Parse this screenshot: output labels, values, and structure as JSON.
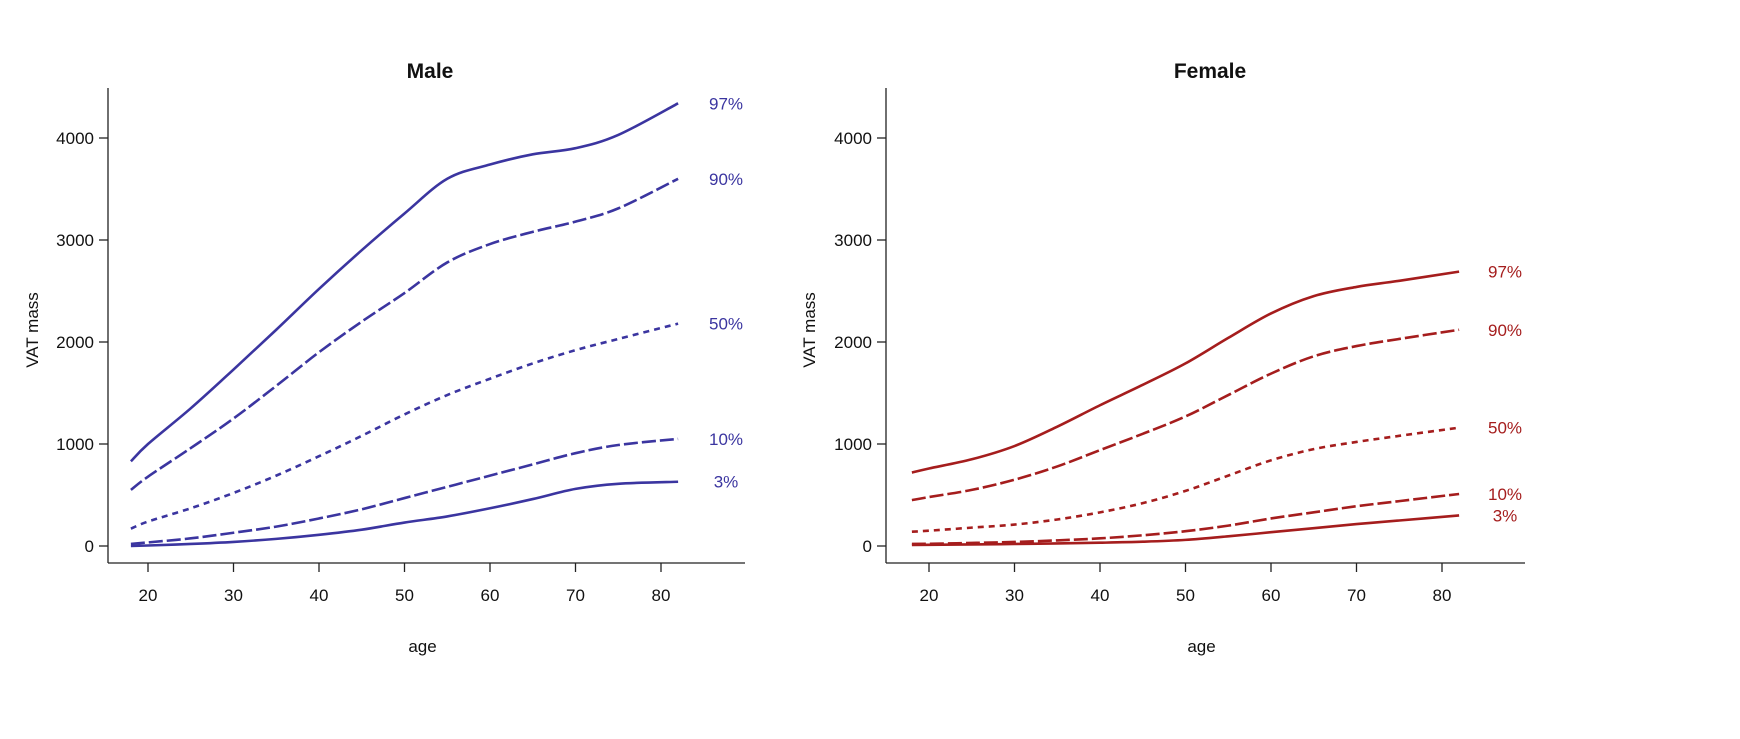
{
  "chart_data": [
    {
      "type": "line",
      "title": "Male",
      "xlabel": "age",
      "ylabel": "VAT mass",
      "xlim": [
        15,
        88
      ],
      "ylim": [
        -200,
        4500
      ],
      "xticks": [
        20,
        30,
        40,
        50,
        60,
        70,
        80
      ],
      "yticks": [
        0,
        1000,
        2000,
        3000,
        4000
      ],
      "grid": false,
      "color": "#3b35a0",
      "x": [
        18,
        20,
        25,
        30,
        35,
        40,
        45,
        50,
        55,
        60,
        65,
        70,
        75,
        82
      ],
      "series": [
        {
          "name": "97%",
          "style": "solid",
          "values": [
            830,
            1000,
            1350,
            1730,
            2120,
            2520,
            2900,
            3260,
            3600,
            3740,
            3840,
            3900,
            4030,
            4340
          ]
        },
        {
          "name": "90%",
          "style": "longdash",
          "values": [
            550,
            680,
            960,
            1250,
            1570,
            1900,
            2200,
            2480,
            2780,
            2960,
            3080,
            3180,
            3310,
            3600
          ]
        },
        {
          "name": "50%",
          "style": "shortdash",
          "values": [
            170,
            240,
            370,
            520,
            690,
            880,
            1080,
            1290,
            1480,
            1640,
            1790,
            1920,
            2030,
            2180
          ]
        },
        {
          "name": "10%",
          "style": "longdash",
          "values": [
            20,
            35,
            75,
            130,
            190,
            270,
            360,
            470,
            580,
            690,
            800,
            910,
            990,
            1050
          ]
        },
        {
          "name": "3%",
          "style": "solid",
          "values": [
            0,
            5,
            20,
            40,
            70,
            110,
            160,
            230,
            290,
            370,
            460,
            560,
            610,
            630
          ]
        }
      ]
    },
    {
      "type": "line",
      "title": "Female",
      "xlabel": "age",
      "ylabel": "VAT mass",
      "xlim": [
        15,
        88
      ],
      "ylim": [
        -200,
        4500
      ],
      "xticks": [
        20,
        30,
        40,
        50,
        60,
        70,
        80
      ],
      "yticks": [
        0,
        1000,
        2000,
        3000,
        4000
      ],
      "grid": false,
      "color": "#a51d1d",
      "x": [
        18,
        20,
        25,
        30,
        35,
        40,
        45,
        50,
        55,
        60,
        65,
        70,
        75,
        82
      ],
      "series": [
        {
          "name": "97%",
          "style": "solid",
          "values": [
            720,
            760,
            850,
            980,
            1170,
            1380,
            1580,
            1790,
            2040,
            2280,
            2450,
            2540,
            2600,
            2690
          ]
        },
        {
          "name": "90%",
          "style": "longdash",
          "values": [
            450,
            480,
            550,
            650,
            780,
            940,
            1100,
            1270,
            1480,
            1690,
            1860,
            1960,
            2030,
            2120
          ]
        },
        {
          "name": "50%",
          "style": "shortdash",
          "values": [
            140,
            150,
            180,
            210,
            260,
            330,
            420,
            540,
            690,
            840,
            950,
            1020,
            1080,
            1160
          ]
        },
        {
          "name": "10%",
          "style": "longdash",
          "values": [
            20,
            22,
            30,
            40,
            55,
            75,
            105,
            145,
            200,
            270,
            330,
            390,
            440,
            510
          ]
        },
        {
          "name": "3%",
          "style": "solid",
          "values": [
            10,
            12,
            15,
            20,
            25,
            32,
            42,
            60,
            95,
            135,
            175,
            215,
            250,
            300
          ]
        }
      ]
    }
  ]
}
